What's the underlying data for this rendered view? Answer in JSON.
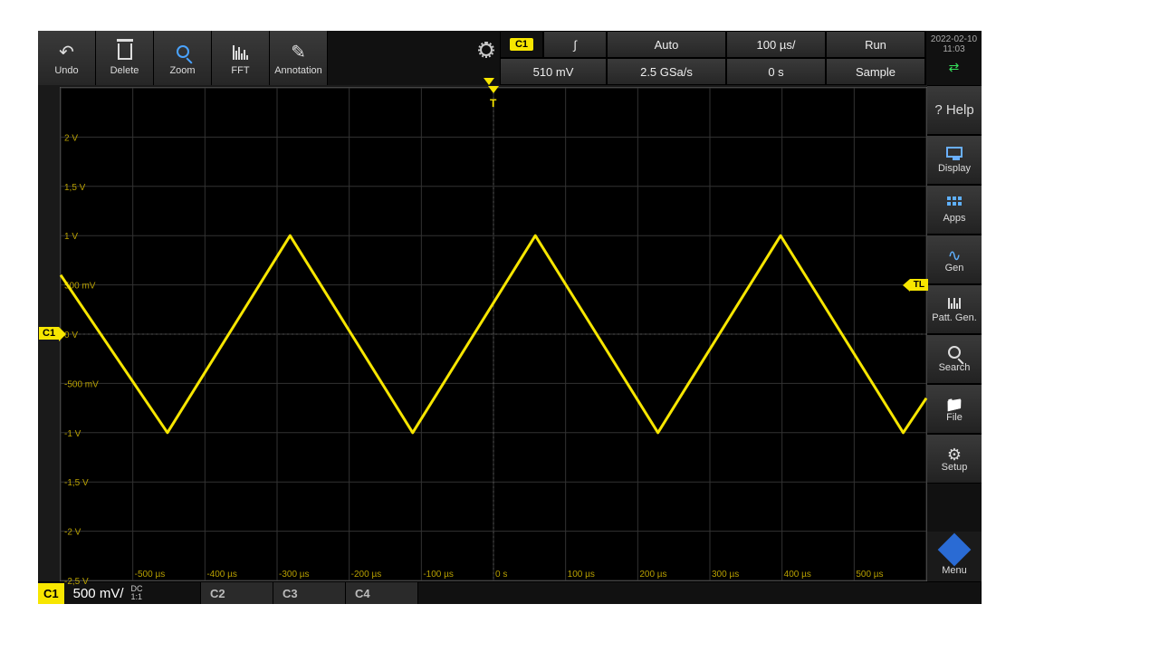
{
  "toolbar": {
    "undo": "Undo",
    "delete": "Delete",
    "zoom": "Zoom",
    "fft": "FFT",
    "annotation": "Annotation"
  },
  "readouts": {
    "channel_badge": "C1",
    "trigger_mode": "Auto",
    "timebase": "100 µs/",
    "run_state": "Run",
    "trigger_level": "510 mV",
    "sample_rate": "2.5 GSa/s",
    "horiz_pos": "0 s",
    "acq_mode": "Sample"
  },
  "clock": {
    "date": "2022-02-10",
    "time": "11:03"
  },
  "sidebar": {
    "help": "? Help",
    "display": "Display",
    "apps": "Apps",
    "gen": "Gen",
    "pattgen": "Patt. Gen.",
    "search": "Search",
    "file": "File",
    "setup": "Setup",
    "menu": "Menu"
  },
  "channels": {
    "c1": {
      "tag": "C1",
      "scale": "500 mV/",
      "coupling": "DC",
      "ratio": "1:1"
    },
    "c2": "C2",
    "c3": "C3",
    "c4": "C4"
  },
  "plot": {
    "bg": "#000000",
    "grid_color": "#333333",
    "axis_dash_color": "#555555",
    "wave_color": "#f7e600",
    "tick_color": "#b8a000",
    "ylabel_color": "#b8a000",
    "x_divisions": 12,
    "y_divisions": 10,
    "y_ticks": [
      "2 V",
      "1,5 V",
      "1 V",
      "500 mV",
      "0 V",
      "-500 mV",
      "-1 V",
      "-1,5 V",
      "-2 V",
      "-2,5 V"
    ],
    "y_tick_div": [
      1,
      2,
      3,
      4,
      5,
      6,
      7,
      8,
      9,
      10
    ],
    "x_ticks": [
      "-500 µs",
      "-400 µs",
      "-300 µs",
      "-200 µs",
      "-100 µs",
      "0 s",
      "100 µs",
      "200 µs",
      "300 µs",
      "400 µs",
      "500 µs"
    ],
    "x_tick_div": [
      1,
      2,
      3,
      4,
      5,
      6,
      7,
      8,
      9,
      10,
      11
    ],
    "center_x_div": 6,
    "center_y_div": 5,
    "c1_marker": "C1",
    "tl_marker": "TL",
    "tl_y_div": 4,
    "t_marker": "T",
    "waveform": {
      "type": "triangle",
      "amplitude_divs": 2,
      "period_divs": 3.4,
      "phase_start_div": 0,
      "start_state": "falling_from_peak_y_div3.8",
      "line_width": 3,
      "points_xy_div": [
        [
          0.0,
          3.8
        ],
        [
          1.48,
          7.0
        ],
        [
          3.18,
          3.0
        ],
        [
          4.88,
          7.0
        ],
        [
          6.58,
          3.0
        ],
        [
          8.28,
          7.0
        ],
        [
          9.98,
          3.0
        ],
        [
          11.68,
          7.0
        ],
        [
          12.0,
          6.3
        ]
      ]
    }
  }
}
